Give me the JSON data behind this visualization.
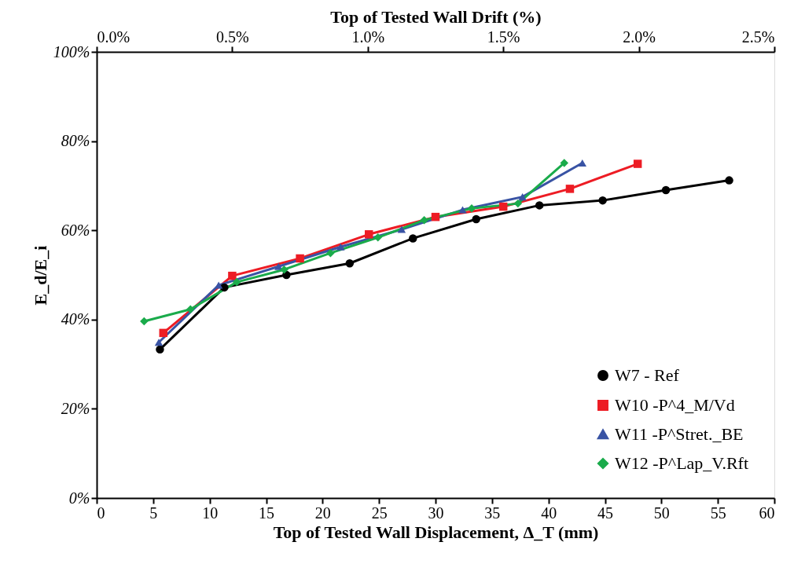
{
  "chart_data": {
    "type": "line",
    "xlabel": "Top of Tested Wall Displacement, Δ_T (mm)",
    "ylabel": "E_d/E_i",
    "x2label": "Top of Tested Wall Drift (%)",
    "xlim": [
      0,
      60
    ],
    "xticks": [
      0,
      5,
      10,
      15,
      20,
      25,
      30,
      35,
      40,
      45,
      50,
      55,
      60
    ],
    "x2lim": [
      0,
      2.5
    ],
    "x2ticks": [
      {
        "value": 0,
        "label": "0.0%"
      },
      {
        "value": 0.5,
        "label": "0.5%"
      },
      {
        "value": 1.0,
        "label": "1.0%"
      },
      {
        "value": 1.5,
        "label": "1.5%"
      },
      {
        "value": 2.0,
        "label": "2.0%"
      },
      {
        "value": 2.5,
        "label": "2.5%"
      }
    ],
    "ylim": [
      0,
      100
    ],
    "yticks": [
      {
        "value": 0,
        "label": "0%"
      },
      {
        "value": 20,
        "label": "20%"
      },
      {
        "value": 40,
        "label": "40%"
      },
      {
        "value": 60,
        "label": "60%"
      },
      {
        "value": 80,
        "label": "80%"
      },
      {
        "value": 100,
        "label": "100%"
      }
    ],
    "grid": false,
    "legend": "bottom right",
    "line_style": "solid",
    "series": [
      {
        "name": "W7 - Ref",
        "color": "#000000",
        "marker": "circle",
        "x": [
          5.6,
          11.3,
          16.8,
          22.4,
          28.0,
          33.6,
          39.2,
          44.8,
          50.4,
          56.0
        ],
        "values": [
          33.3,
          47.2,
          50.0,
          52.6,
          58.2,
          62.5,
          65.6,
          66.7,
          69.0,
          71.2
        ]
      },
      {
        "name": "W10 -P^4_M/Vd",
        "color": "#ed1c24",
        "marker": "square",
        "x": [
          5.9,
          12.0,
          18.0,
          24.1,
          30.0,
          36.0,
          41.9,
          47.9
        ],
        "values": [
          37.0,
          49.8,
          53.7,
          59.1,
          63.0,
          65.3,
          69.3,
          74.9
        ]
      },
      {
        "name": "W11 -P^Stret._BE",
        "color": "#3953a4",
        "marker": "triangle",
        "x": [
          5.5,
          10.8,
          16.1,
          21.6,
          27.0,
          32.4,
          37.7,
          43.0
        ],
        "values": [
          34.9,
          47.7,
          51.9,
          56.3,
          60.2,
          64.6,
          67.5,
          75.1
        ]
      },
      {
        "name": "W12 -P^Lap_V.Rft",
        "color": "#1aab4b",
        "marker": "diamond",
        "x": [
          4.2,
          8.3,
          12.4,
          16.6,
          20.7,
          24.9,
          29.0,
          33.2,
          37.3,
          41.4
        ],
        "values": [
          39.6,
          42.3,
          48.4,
          51.2,
          54.9,
          58.4,
          62.3,
          64.9,
          66.0,
          75.1
        ]
      }
    ]
  }
}
